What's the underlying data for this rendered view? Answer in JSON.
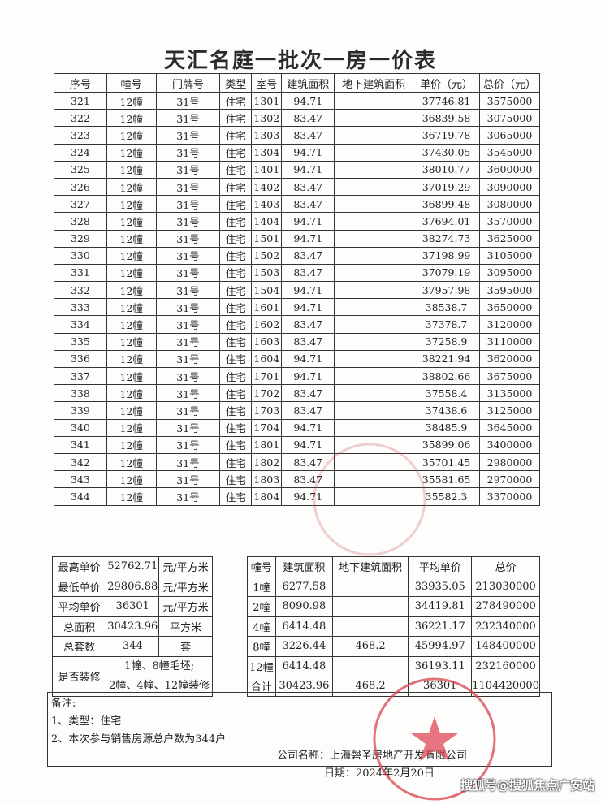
{
  "title": "天汇名庭一批次一房一价表",
  "main_table": {
    "headers": [
      "序号",
      "幢号",
      "门牌号",
      "类型",
      "室号",
      "建筑面积",
      "地下建筑面积",
      "单价（元）",
      "总价（元）"
    ],
    "rows": [
      [
        "321",
        "12幢",
        "31号",
        "住宅",
        "1301",
        "94.71",
        "",
        "37746.81",
        "3575000"
      ],
      [
        "322",
        "12幢",
        "31号",
        "住宅",
        "1302",
        "83.47",
        "",
        "36839.58",
        "3075000"
      ],
      [
        "323",
        "12幢",
        "31号",
        "住宅",
        "1303",
        "83.47",
        "",
        "36719.78",
        "3065000"
      ],
      [
        "324",
        "12幢",
        "31号",
        "住宅",
        "1304",
        "94.71",
        "",
        "37430.05",
        "3545000"
      ],
      [
        "325",
        "12幢",
        "31号",
        "住宅",
        "1401",
        "94.71",
        "",
        "38010.77",
        "3600000"
      ],
      [
        "326",
        "12幢",
        "31号",
        "住宅",
        "1402",
        "83.47",
        "",
        "37019.29",
        "3090000"
      ],
      [
        "327",
        "12幢",
        "31号",
        "住宅",
        "1403",
        "83.47",
        "",
        "36899.48",
        "3080000"
      ],
      [
        "328",
        "12幢",
        "31号",
        "住宅",
        "1404",
        "94.71",
        "",
        "37694.01",
        "3570000"
      ],
      [
        "329",
        "12幢",
        "31号",
        "住宅",
        "1501",
        "94.71",
        "",
        "38274.73",
        "3625000"
      ],
      [
        "330",
        "12幢",
        "31号",
        "住宅",
        "1502",
        "83.47",
        "",
        "37198.99",
        "3105000"
      ],
      [
        "331",
        "12幢",
        "31号",
        "住宅",
        "1503",
        "83.47",
        "",
        "37079.19",
        "3095000"
      ],
      [
        "332",
        "12幢",
        "31号",
        "住宅",
        "1504",
        "94.71",
        "",
        "37957.98",
        "3595000"
      ],
      [
        "333",
        "12幢",
        "31号",
        "住宅",
        "1601",
        "94.71",
        "",
        "38538.7",
        "3650000"
      ],
      [
        "334",
        "12幢",
        "31号",
        "住宅",
        "1602",
        "83.47",
        "",
        "37378.7",
        "3120000"
      ],
      [
        "335",
        "12幢",
        "31号",
        "住宅",
        "1603",
        "83.47",
        "",
        "37258.9",
        "3110000"
      ],
      [
        "336",
        "12幢",
        "31号",
        "住宅",
        "1604",
        "94.71",
        "",
        "38221.94",
        "3620000"
      ],
      [
        "337",
        "12幢",
        "31号",
        "住宅",
        "1701",
        "94.71",
        "",
        "38802.66",
        "3675000"
      ],
      [
        "338",
        "12幢",
        "31号",
        "住宅",
        "1702",
        "83.47",
        "",
        "37558.4",
        "3135000"
      ],
      [
        "339",
        "12幢",
        "31号",
        "住宅",
        "1703",
        "83.47",
        "",
        "37438.6",
        "3125000"
      ],
      [
        "340",
        "12幢",
        "31号",
        "住宅",
        "1704",
        "94.71",
        "",
        "38485.9",
        "3645000"
      ],
      [
        "341",
        "12幢",
        "31号",
        "住宅",
        "1801",
        "94.71",
        "",
        "35899.06",
        "3400000"
      ],
      [
        "342",
        "12幢",
        "31号",
        "住宅",
        "1802",
        "83.47",
        "",
        "35701.45",
        "2980000"
      ],
      [
        "343",
        "12幢",
        "31号",
        "住宅",
        "1803",
        "83.47",
        "",
        "35581.65",
        "2970000"
      ],
      [
        "344",
        "12幢",
        "31号",
        "住宅",
        "1804",
        "94.71",
        "",
        "35582.3",
        "3370000"
      ]
    ]
  },
  "summary_left": {
    "rows": [
      [
        "最高单价",
        "52762.71",
        "元/平方米"
      ],
      [
        "最低单价",
        "29806.88",
        "元/平方米"
      ],
      [
        "平均单价",
        "36301",
        "元/平方米"
      ],
      [
        "总面积",
        "30423.96",
        "平方米"
      ],
      [
        "总套数",
        "344",
        "套"
      ]
    ],
    "renovation_label": "是否装修",
    "renovation_line1": "1幢、8幢毛坯;",
    "renovation_line2": "2幢、4幢、12幢装修"
  },
  "summary_right": {
    "headers": [
      "幢号",
      "建筑面积",
      "地下建筑面积",
      "平均单价",
      "总价"
    ],
    "rows": [
      [
        "1幢",
        "6277.58",
        "",
        "33935.05",
        "213030000"
      ],
      [
        "2幢",
        "8090.98",
        "",
        "34419.81",
        "278490000"
      ],
      [
        "4幢",
        "6414.48",
        "",
        "36221.17",
        "232340000"
      ],
      [
        "8幢",
        "3226.44",
        "468.2",
        "45994.97",
        "148400000"
      ],
      [
        "12幢",
        "6414.48",
        "",
        "36193.11",
        "232160000"
      ],
      [
        "合计",
        "30423.96",
        "468.2",
        "36301",
        "1104420000"
      ]
    ]
  },
  "notes": {
    "heading": "备注:",
    "line1": "1、类型：住宅",
    "line2": "2、本次参与销售房源总户数为344户",
    "company": "公司名称：上海磬圣房地产开发有限公司",
    "date": "日期：2024年2月20日"
  },
  "stamp": {
    "text": "上海磬圣房地产开发有限公司",
    "color": "#d9434f"
  },
  "watermark": "搜狐号@搜狐焦点广安站"
}
